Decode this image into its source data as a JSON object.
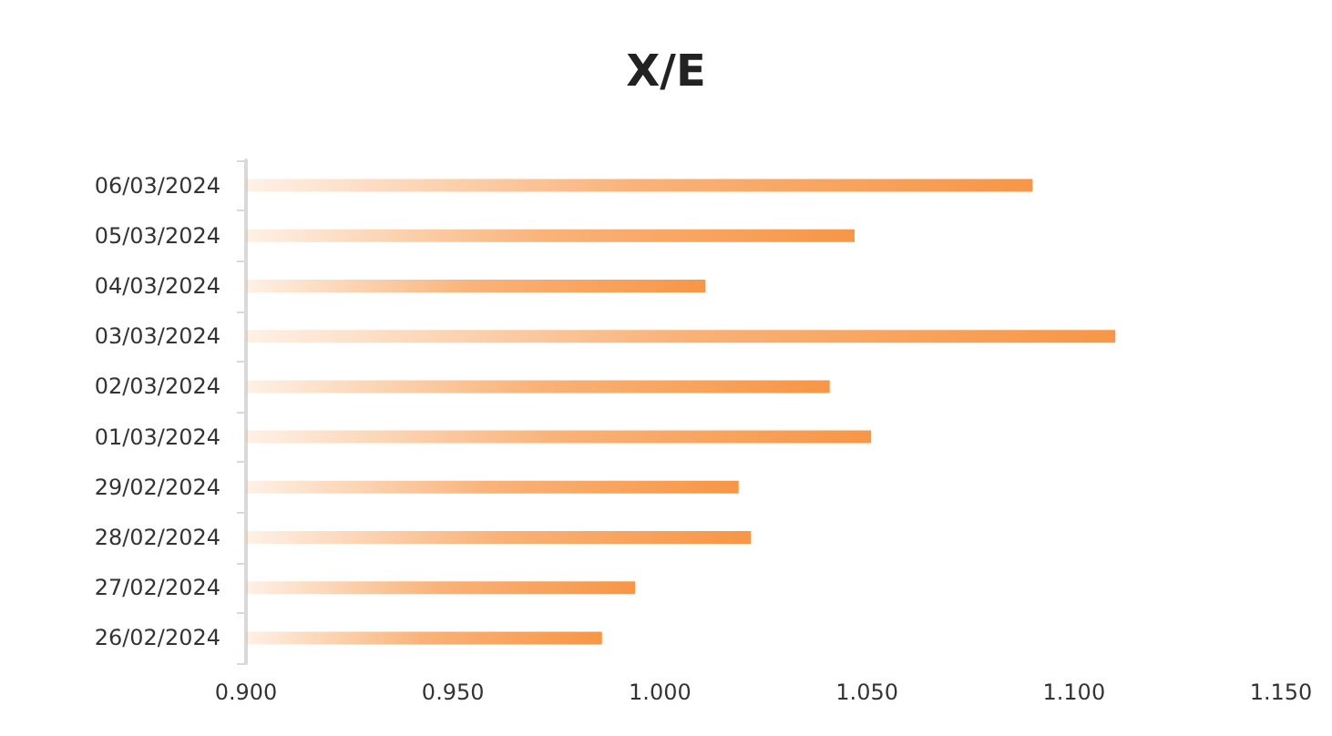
{
  "chart_data": {
    "type": "bar",
    "orientation": "horizontal",
    "title": "X/E",
    "categories": [
      "06/03/2024",
      "05/03/2024",
      "04/03/2024",
      "03/03/2024",
      "02/03/2024",
      "01/03/2024",
      "29/02/2024",
      "28/02/2024",
      "27/02/2024",
      "26/02/2024"
    ],
    "values": [
      1.09,
      1.047,
      1.011,
      1.11,
      1.041,
      1.051,
      1.019,
      1.022,
      0.994,
      0.986
    ],
    "color": "#f79646",
    "xlim": [
      0.9,
      1.15
    ],
    "xticks": [
      {
        "value": 0.9,
        "label": "0.900"
      },
      {
        "value": 0.95,
        "label": "0.950"
      },
      {
        "value": 1.0,
        "label": "1.000"
      },
      {
        "value": 1.05,
        "label": "1.050"
      },
      {
        "value": 1.1,
        "label": "1.100"
      },
      {
        "value": 1.15,
        "label": "1.150"
      }
    ],
    "grid": false
  }
}
